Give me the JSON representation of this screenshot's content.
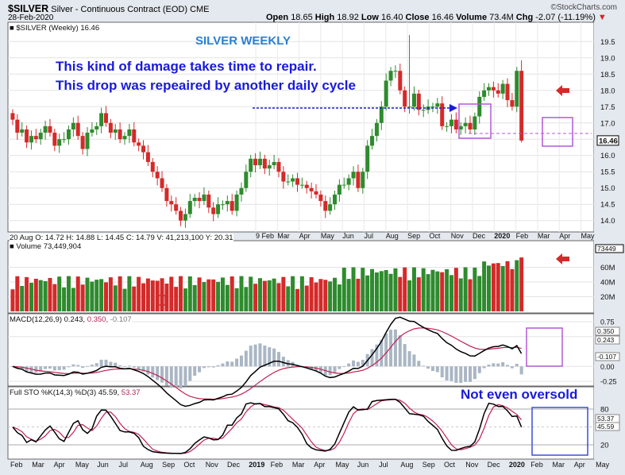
{
  "header": {
    "symbol": "$SILVER",
    "description": "Silver - Continuous Contract (EOD)",
    "exchange": "CME",
    "date": "28-Feb-2020",
    "open_label": "Open",
    "open": "18.65",
    "high_label": "High",
    "high": "18.92",
    "low_label": "Low",
    "low": "16.40",
    "close_label": "Close",
    "close": "16.46",
    "volume_label": "Volume",
    "volume": "73.4M",
    "chg_label": "Chg",
    "chg": "-2.07 (-11.19%)",
    "brand": "©StockCharts.com"
  },
  "annotations": {
    "weekly": "SILVER WEEKLY",
    "line1": "This kind of damage takes time to repair.",
    "line2": "This drop was repeaired by another daily cycle",
    "oversold": "Not even oversold"
  },
  "price_panel": {
    "legend": "■ $SILVER (Weekly) 16.46",
    "readout": "20 Aug O: 14.72   H: 14.88   L: 14.45   C: 14.79   V: 41,213,100   Y: 20.31",
    "last_value_tag": "16.46"
  },
  "volume_panel": {
    "legend": "■ Volume 73,449,904",
    "last_value_tag": "73449"
  },
  "macd_panel": {
    "legend_main": "MACD(12,26,9) 0.243,",
    "legend_signal": "0.350,",
    "legend_hist": "-0.107",
    "tags": [
      "0.350",
      "0.243",
      "-0.107"
    ]
  },
  "sto_panel": {
    "legend_main": "Full STO %K(14,3) %D(3) 45.59,",
    "legend_d": "53.37",
    "tags": [
      "53.37",
      "45.59"
    ]
  },
  "colors": {
    "up": "#2e8b2e",
    "down": "#d42a2a",
    "annotation_blue": "#1a1ad8",
    "box_purple": "#b05ad8",
    "signal_line": "#c02050",
    "histogram": "#aab6c4"
  },
  "chart_data": [
    {
      "type": "candlestick",
      "title": "$SILVER (Weekly)",
      "ylim": [
        13.7,
        19.8
      ],
      "yticks": [
        14.0,
        14.5,
        15.0,
        15.5,
        16.0,
        16.5,
        17.0,
        17.5,
        18.0,
        18.5,
        19.0,
        19.5
      ],
      "x_labels_top": [
        "9 Feb",
        "Mar",
        "Apr",
        "May",
        "Jun",
        "Jul",
        "Aug",
        "Sep",
        "Oct",
        "Nov",
        "Dec",
        "2020",
        "Feb",
        "Mar",
        "Apr",
        "May"
      ],
      "close": [
        17.1,
        16.7,
        16.8,
        16.4,
        16.6,
        16.5,
        16.7,
        16.9,
        16.7,
        16.3,
        16.5,
        16.5,
        16.8,
        17.0,
        16.6,
        16.2,
        16.7,
        16.8,
        16.9,
        17.3,
        17.0,
        16.7,
        16.8,
        16.5,
        16.6,
        16.8,
        16.4,
        16.3,
        16.1,
        15.8,
        15.5,
        15.3,
        15.0,
        14.6,
        14.5,
        14.3,
        14.0,
        14.2,
        14.6,
        14.7,
        14.6,
        14.8,
        14.4,
        14.2,
        14.5,
        14.5,
        14.6,
        14.3,
        14.8,
        15.0,
        15.5,
        15.9,
        15.7,
        15.9,
        15.6,
        15.7,
        15.8,
        15.5,
        15.2,
        15.2,
        15.3,
        15.1,
        15.1,
        15.0,
        14.9,
        14.8,
        14.6,
        14.3,
        14.5,
        14.8,
        15.1,
        15.1,
        15.3,
        15.5,
        15.0,
        15.5,
        16.3,
        16.6,
        17.0,
        17.5,
        18.3,
        18.6,
        18.6,
        18.0,
        17.5,
        17.5,
        17.9,
        17.4,
        17.4,
        17.5,
        17.5,
        17.6,
        16.9,
        16.9,
        17.1,
        16.8,
        16.9,
        17.0,
        16.8,
        17.2,
        17.8,
        18.0,
        18.1,
        18.0,
        17.9,
        18.2,
        17.7,
        17.5,
        18.6,
        16.46
      ],
      "volume_scale": "0-80M"
    },
    {
      "type": "line",
      "title": "MACD(12,26,9)",
      "series": [
        {
          "name": "MACD",
          "last": 0.243
        },
        {
          "name": "Signal",
          "last": 0.35
        },
        {
          "name": "Histogram",
          "last": -0.107
        }
      ],
      "ylim": [
        -0.25,
        0.75
      ],
      "yticks": [
        0.75,
        0.5,
        0.0,
        -0.25
      ]
    },
    {
      "type": "line",
      "title": "Full STO %K(14,3) %D(3)",
      "series": [
        {
          "name": "%K",
          "last": 45.59
        },
        {
          "name": "%D",
          "last": 53.37
        }
      ],
      "ylim": [
        0,
        100
      ],
      "yticks": [
        80,
        20
      ],
      "x_labels": [
        "Feb",
        "Mar",
        "Apr",
        "May",
        "Jun",
        "Jul",
        "Aug",
        "Sep",
        "Oct",
        "Nov",
        "Dec",
        "2019",
        "Feb",
        "Mar",
        "Apr",
        "May",
        "Jun",
        "Jul",
        "Aug",
        "Sep",
        "Oct",
        "Nov",
        "Dec",
        "2020",
        "Feb",
        "Mar",
        "Apr",
        "May"
      ]
    }
  ]
}
